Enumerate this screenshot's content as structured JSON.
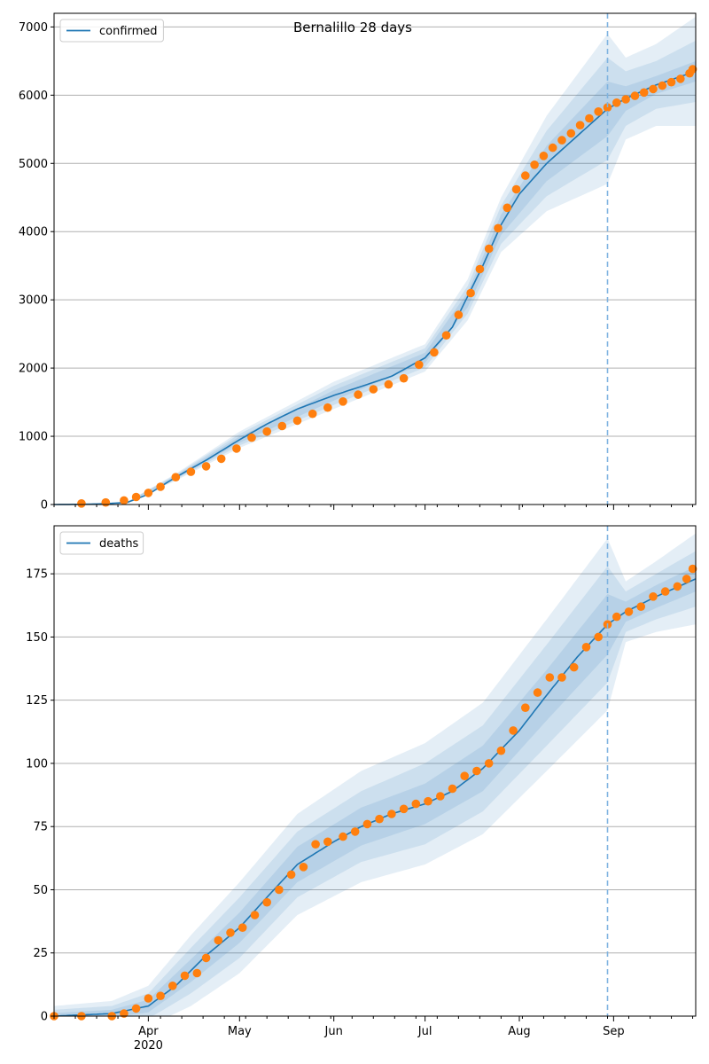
{
  "figure": {
    "title": "Bernalillo 28 days",
    "colors": {
      "line": "#1f77b4",
      "points": "#ff7f0e",
      "band": "#1f77b4",
      "grid": "#b0b0b0",
      "forecast_line": "#7fb3e0"
    }
  },
  "chart_data": [
    {
      "type": "line",
      "panel": "top",
      "legend": [
        "confirmed"
      ],
      "legend_position": "top-left",
      "grid": "horizontal",
      "x_range": [
        "2020-03-01",
        "2020-09-28"
      ],
      "ylim": [
        0,
        7200
      ],
      "y_ticks": [
        0,
        1000,
        2000,
        3000,
        4000,
        5000,
        6000,
        7000
      ],
      "forecast_start": "2020-08-30",
      "model_line": {
        "name": "confirmed",
        "x": [
          "2020-03-01",
          "2020-03-15",
          "2020-03-25",
          "2020-04-01",
          "2020-04-10",
          "2020-04-20",
          "2020-05-01",
          "2020-05-10",
          "2020-05-20",
          "2020-06-01",
          "2020-06-10",
          "2020-06-20",
          "2020-07-01",
          "2020-07-10",
          "2020-07-20",
          "2020-07-26",
          "2020-08-01",
          "2020-08-10",
          "2020-08-20",
          "2020-08-30",
          "2020-09-05",
          "2020-09-15",
          "2020-09-28"
        ],
        "y": [
          0,
          5,
          30,
          150,
          400,
          650,
          950,
          1180,
          1400,
          1600,
          1730,
          1880,
          2150,
          2600,
          3500,
          4100,
          4550,
          5000,
          5400,
          5800,
          5950,
          6150,
          6350
        ]
      },
      "bands": {
        "x": [
          "2020-03-01",
          "2020-03-25",
          "2020-04-10",
          "2020-05-01",
          "2020-06-01",
          "2020-07-01",
          "2020-07-15",
          "2020-07-26",
          "2020-08-10",
          "2020-08-30",
          "2020-09-05",
          "2020-09-15",
          "2020-09-28"
        ],
        "center": [
          0,
          30,
          400,
          950,
          1600,
          2150,
          3000,
          4100,
          5000,
          5800,
          5950,
          6150,
          6350
        ],
        "half_widths": [
          [
            0,
            10,
            50,
            120,
            200,
            200,
            300,
            400,
            700,
            1100,
            600,
            600,
            800
          ],
          [
            0,
            8,
            35,
            85,
            140,
            140,
            200,
            280,
            480,
            750,
            400,
            350,
            450
          ],
          [
            0,
            5,
            20,
            45,
            75,
            75,
            110,
            150,
            260,
            400,
            180,
            130,
            150
          ]
        ]
      },
      "observed": {
        "x": [
          "2020-03-10",
          "2020-03-18",
          "2020-03-24",
          "2020-03-28",
          "2020-04-01",
          "2020-04-05",
          "2020-04-10",
          "2020-04-15",
          "2020-04-20",
          "2020-04-25",
          "2020-04-30",
          "2020-05-05",
          "2020-05-10",
          "2020-05-15",
          "2020-05-20",
          "2020-05-25",
          "2020-05-30",
          "2020-06-04",
          "2020-06-09",
          "2020-06-14",
          "2020-06-19",
          "2020-06-24",
          "2020-06-29",
          "2020-07-04",
          "2020-07-08",
          "2020-07-12",
          "2020-07-16",
          "2020-07-19",
          "2020-07-22",
          "2020-07-25",
          "2020-07-28",
          "2020-07-31",
          "2020-08-03",
          "2020-08-06",
          "2020-08-09",
          "2020-08-12",
          "2020-08-15",
          "2020-08-18",
          "2020-08-21",
          "2020-08-24",
          "2020-08-27",
          "2020-08-30",
          "2020-09-02",
          "2020-09-05",
          "2020-09-08",
          "2020-09-11",
          "2020-09-14",
          "2020-09-17",
          "2020-09-20",
          "2020-09-23",
          "2020-09-26",
          "2020-09-27"
        ],
        "y": [
          15,
          30,
          60,
          110,
          170,
          260,
          400,
          480,
          560,
          670,
          820,
          980,
          1070,
          1150,
          1230,
          1330,
          1420,
          1510,
          1610,
          1690,
          1760,
          1850,
          2050,
          2230,
          2480,
          2780,
          3100,
          3450,
          3750,
          4050,
          4350,
          4620,
          4820,
          4980,
          5110,
          5230,
          5340,
          5440,
          5560,
          5660,
          5760,
          5820,
          5890,
          5940,
          5990,
          6040,
          6090,
          6140,
          6190,
          6240,
          6320,
          6380
        ]
      }
    },
    {
      "type": "line",
      "panel": "bottom",
      "legend": [
        "deaths"
      ],
      "legend_position": "top-left",
      "grid": "horizontal",
      "x_range": [
        "2020-03-01",
        "2020-09-28"
      ],
      "ylim": [
        0,
        194
      ],
      "y_ticks": [
        0,
        25,
        50,
        75,
        100,
        125,
        150,
        175
      ],
      "x_ticks": [
        "Apr",
        "May",
        "Jun",
        "Jul",
        "Aug",
        "Sep"
      ],
      "x_year_label": "2020",
      "forecast_start": "2020-08-30",
      "model_line": {
        "name": "deaths",
        "x": [
          "2020-03-01",
          "2020-03-20",
          "2020-04-01",
          "2020-04-10",
          "2020-04-20",
          "2020-05-01",
          "2020-05-10",
          "2020-05-20",
          "2020-06-01",
          "2020-06-10",
          "2020-06-20",
          "2020-07-01",
          "2020-07-10",
          "2020-07-20",
          "2020-08-01",
          "2020-08-10",
          "2020-08-20",
          "2020-08-30",
          "2020-09-05",
          "2020-09-15",
          "2020-09-28"
        ],
        "y": [
          0,
          1,
          4,
          12,
          24,
          35,
          47,
          60,
          69,
          75,
          80,
          84,
          89,
          98,
          113,
          127,
          142,
          155,
          160,
          166,
          173
        ]
      },
      "bands": {
        "x": [
          "2020-03-01",
          "2020-03-20",
          "2020-04-01",
          "2020-04-15",
          "2020-05-01",
          "2020-05-20",
          "2020-06-10",
          "2020-07-01",
          "2020-07-20",
          "2020-08-10",
          "2020-08-30",
          "2020-09-05",
          "2020-09-15",
          "2020-09-28"
        ],
        "center": [
          0,
          1,
          4,
          18,
          35,
          60,
          75,
          84,
          98,
          127,
          155,
          160,
          166,
          173
        ],
        "half_widths": [
          [
            4,
            5,
            8,
            14,
            18,
            20,
            22,
            24,
            26,
            30,
            34,
            12,
            14,
            18
          ],
          [
            2.5,
            3,
            5,
            9,
            12,
            13,
            14,
            16,
            17,
            20,
            23,
            8,
            9,
            11
          ],
          [
            1.2,
            1.5,
            2.5,
            4.5,
            6,
            7,
            7.5,
            8,
            9,
            10,
            12,
            4,
            4.5,
            5
          ]
        ]
      },
      "observed": {
        "x": [
          "2020-03-01",
          "2020-03-10",
          "2020-03-20",
          "2020-03-24",
          "2020-03-28",
          "2020-04-01",
          "2020-04-05",
          "2020-04-09",
          "2020-04-13",
          "2020-04-17",
          "2020-04-20",
          "2020-04-24",
          "2020-04-28",
          "2020-05-02",
          "2020-05-06",
          "2020-05-10",
          "2020-05-14",
          "2020-05-18",
          "2020-05-22",
          "2020-05-26",
          "2020-05-30",
          "2020-06-04",
          "2020-06-08",
          "2020-06-12",
          "2020-06-16",
          "2020-06-20",
          "2020-06-24",
          "2020-06-28",
          "2020-07-02",
          "2020-07-06",
          "2020-07-10",
          "2020-07-14",
          "2020-07-18",
          "2020-07-22",
          "2020-07-26",
          "2020-07-30",
          "2020-08-03",
          "2020-08-07",
          "2020-08-11",
          "2020-08-15",
          "2020-08-19",
          "2020-08-23",
          "2020-08-27",
          "2020-08-30",
          "2020-09-02",
          "2020-09-06",
          "2020-09-10",
          "2020-09-14",
          "2020-09-18",
          "2020-09-22",
          "2020-09-25",
          "2020-09-27"
        ],
        "y": [
          0,
          0,
          0,
          1,
          3,
          7,
          8,
          12,
          16,
          17,
          23,
          30,
          33,
          35,
          40,
          45,
          50,
          56,
          59,
          68,
          69,
          71,
          73,
          76,
          78,
          80,
          82,
          84,
          85,
          87,
          90,
          95,
          97,
          100,
          105,
          113,
          122,
          128,
          134,
          134,
          138,
          146,
          150,
          155,
          158,
          160,
          162,
          166,
          168,
          170,
          173,
          177
        ]
      }
    }
  ]
}
